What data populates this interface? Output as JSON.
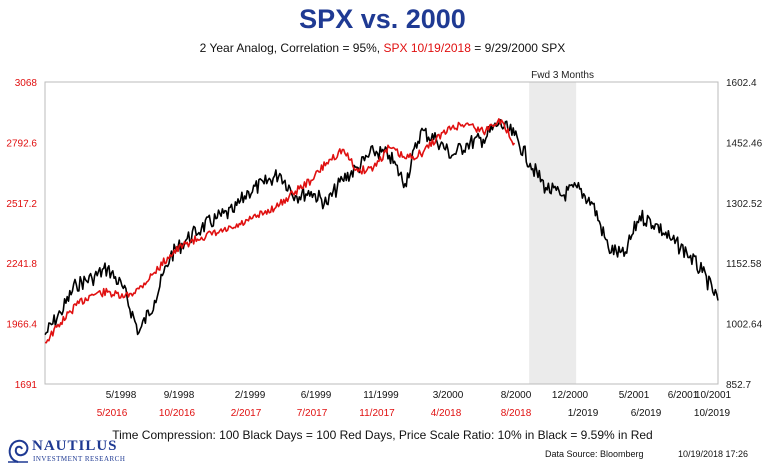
{
  "chart_data": {
    "type": "line",
    "title": "SPX vs. 2000",
    "subtitle": {
      "part1": "2 Year Analog, Correlation = 95%,",
      "part2": "SPX 10/19/2018",
      "part3": "= 9/29/2000 SPX"
    },
    "left_axis": {
      "ylim": [
        1691,
        3068
      ],
      "ticks": [
        "3068",
        "2792.6",
        "2517.2",
        "2241.8",
        "1966.4",
        "1691"
      ],
      "color": "#e01010"
    },
    "right_axis": {
      "ylim": [
        852.7,
        1602.4
      ],
      "ticks": [
        "1602.4",
        "1452.46",
        "1302.52",
        "1152.58",
        "1002.64",
        "852.7"
      ],
      "color": "#222222"
    },
    "x_labels_black": [
      "5/1998",
      "9/1998",
      "2/1999",
      "6/1999",
      "11/1999",
      "3/2000",
      "8/2000",
      "12/2000",
      "5/2001",
      "6/2001",
      "10/2001"
    ],
    "x_labels_red": [
      "5/2016",
      "10/2016",
      "2/2017",
      "7/2017",
      "11/2017",
      "4/2018",
      "8/2018",
      "1/2019",
      "6/2019",
      "10/2019"
    ],
    "shaded_region_label": "Fwd 3 Months",
    "shaded_region": [
      "9/29/2000",
      "12/29/2000"
    ],
    "x_range": [
      "3/1998",
      "10/2001"
    ],
    "grid": false,
    "series": [
      {
        "color": "#000000",
        "axis": "right",
        "x": [
          "3/1998",
          "4/1998",
          "5/1998",
          "6/1998",
          "7/1998",
          "8/1998",
          "9/1998",
          "10/1998",
          "11/1998",
          "12/1998",
          "1/1999",
          "2/1999",
          "3/1999",
          "4/1999",
          "5/1999",
          "6/1999",
          "7/1999",
          "8/1999",
          "9/1999",
          "10/1999",
          "11/1999",
          "12/1999",
          "1/2000",
          "2/2000",
          "3/2000",
          "4/2000",
          "5/2000",
          "6/2000",
          "7/2000",
          "8/2000",
          "9/2000",
          "10/2000",
          "11/2000",
          "12/2000",
          "1/2001",
          "2/2001",
          "3/2001",
          "4/2001",
          "5/2001",
          "6/2001",
          "7/2001",
          "8/2001",
          "9/2001",
          "10/2001"
        ],
        "values": [
          975,
          1030,
          1100,
          1115,
          1140,
          1090,
          980,
          1060,
          1170,
          1210,
          1240,
          1265,
          1280,
          1330,
          1350,
          1375,
          1320,
          1330,
          1300,
          1360,
          1390,
          1430,
          1420,
          1350,
          1480,
          1460,
          1420,
          1450,
          1460,
          1500,
          1470,
          1400,
          1340,
          1320,
          1340,
          1300,
          1190,
          1170,
          1270,
          1250,
          1210,
          1180,
          1130,
          1060
        ]
      },
      {
        "color": "#e01010",
        "axis": "left",
        "x": [
          "3/1998",
          "4/1998",
          "5/1998",
          "6/1998",
          "7/1998",
          "8/1998",
          "9/1998",
          "10/1998",
          "11/1998",
          "12/1998",
          "1/1999",
          "2/1999",
          "3/1999",
          "4/1999",
          "5/1999",
          "6/1999",
          "7/1999",
          "8/1999",
          "9/1999",
          "10/1999",
          "11/1999",
          "12/1999",
          "1/2000",
          "2/2000",
          "3/2000",
          "4/2000",
          "5/2000",
          "6/2000",
          "7/2000",
          "8/2000",
          "9/2000"
        ],
        "values": [
          1880,
          1970,
          2050,
          2100,
          2110,
          2085,
          2125,
          2200,
          2280,
          2330,
          2360,
          2380,
          2400,
          2435,
          2470,
          2510,
          2570,
          2620,
          2700,
          2760,
          2660,
          2680,
          2770,
          2720,
          2740,
          2810,
          2860,
          2880,
          2840,
          2900,
          2790
        ]
      }
    ]
  },
  "footer": {
    "note": "Time Compression: 100 Black Days = 100 Red Days,  Price Scale Ratio: 10% in Black = 9.59% in Red",
    "source": "Data Source: Bloomberg",
    "timestamp": "10/19/2018 17:26"
  },
  "logo": {
    "name": "NAUTILUS",
    "sub": "INVESTMENT RESEARCH",
    "icon": "nautilus-shell-icon",
    "color": "#1f3a93"
  }
}
